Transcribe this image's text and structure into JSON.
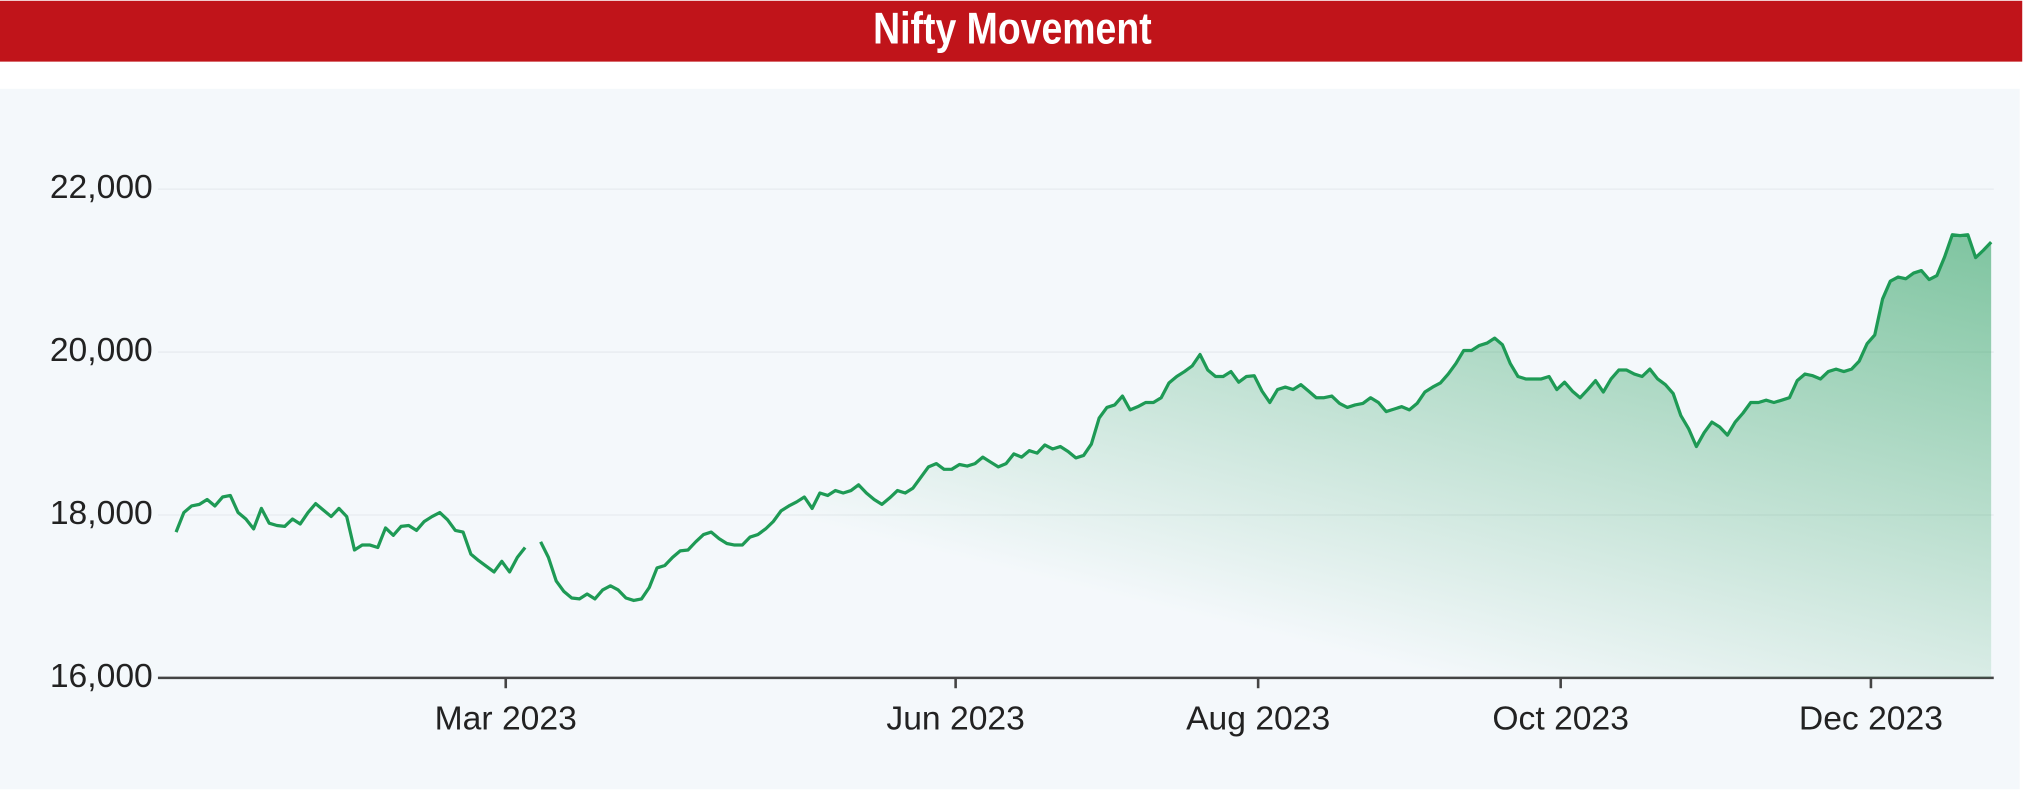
{
  "chart_data": {
    "type": "line",
    "title": "Nifty Movement",
    "x": [
      "2022-12",
      "2022-12",
      "2022-12",
      "2022-12",
      "2022-12",
      "2022-12",
      "2022-12",
      "2022-12",
      "2023-01",
      "2023-01",
      "2023-01",
      "2023-01",
      "2023-01",
      "2023-01",
      "2023-01",
      "2023-01",
      "2023-01",
      "2023-01",
      "2023-01",
      "2023-01",
      "2023-01",
      "2023-01",
      "2023-01",
      "2023-01",
      "2023-01",
      "2023-01",
      "2023-02",
      "2023-02",
      "2023-02",
      "2023-02",
      "2023-02",
      "2023-02",
      "2023-02",
      "2023-02",
      "2023-02",
      "2023-02",
      "2023-02",
      "2023-02",
      "2023-02",
      "2023-02",
      "2023-02",
      "2023-02",
      "2023-02",
      "2023-03",
      "2023-03",
      "2023-03",
      "2023-03",
      "2023-03",
      "2023-03",
      "2023-03",
      "2023-03",
      "2023-03",
      "2023-03",
      "2023-03",
      "2023-03",
      "2023-03",
      "2023-03",
      "2023-03",
      "2023-03",
      "2023-03",
      "2023-03",
      "2023-03",
      "2023-04",
      "2023-04",
      "2023-04",
      "2023-04",
      "2023-04",
      "2023-04",
      "2023-04",
      "2023-04",
      "2023-04",
      "2023-04",
      "2023-04",
      "2023-04",
      "2023-04",
      "2023-04",
      "2023-04",
      "2023-04",
      "2023-04",
      "2023-04",
      "2023-04",
      "2023-05",
      "2023-05",
      "2023-05",
      "2023-05",
      "2023-05",
      "2023-05",
      "2023-05",
      "2023-05",
      "2023-05",
      "2023-05",
      "2023-05",
      "2023-05",
      "2023-05",
      "2023-05",
      "2023-05",
      "2023-05",
      "2023-05",
      "2023-05",
      "2023-05",
      "2023-05",
      "2023-06",
      "2023-06",
      "2023-06",
      "2023-06",
      "2023-06",
      "2023-06",
      "2023-06",
      "2023-06",
      "2023-06",
      "2023-06",
      "2023-06",
      "2023-06",
      "2023-06",
      "2023-06",
      "2023-06",
      "2023-06",
      "2023-06",
      "2023-06",
      "2023-06",
      "2023-07",
      "2023-07",
      "2023-07",
      "2023-07",
      "2023-07",
      "2023-07",
      "2023-07",
      "2023-07",
      "2023-07",
      "2023-07",
      "2023-07",
      "2023-07",
      "2023-07",
      "2023-07",
      "2023-07",
      "2023-07",
      "2023-07",
      "2023-07",
      "2023-07",
      "2023-07",
      "2023-08",
      "2023-08",
      "2023-08",
      "2023-08",
      "2023-08",
      "2023-08",
      "2023-08",
      "2023-08",
      "2023-08",
      "2023-08",
      "2023-08",
      "2023-08",
      "2023-08",
      "2023-08",
      "2023-08",
      "2023-08",
      "2023-08",
      "2023-08",
      "2023-08",
      "2023-09",
      "2023-09",
      "2023-09",
      "2023-09",
      "2023-09",
      "2023-09",
      "2023-09",
      "2023-09",
      "2023-09",
      "2023-09",
      "2023-09",
      "2023-09",
      "2023-09",
      "2023-09",
      "2023-09",
      "2023-09",
      "2023-09",
      "2023-09",
      "2023-09",
      "2023-09",
      "2023-10",
      "2023-10",
      "2023-10",
      "2023-10",
      "2023-10",
      "2023-10",
      "2023-10",
      "2023-10",
      "2023-10",
      "2023-10",
      "2023-10",
      "2023-10",
      "2023-10",
      "2023-10",
      "2023-10",
      "2023-10",
      "2023-10",
      "2023-10",
      "2023-10",
      "2023-10",
      "2023-11",
      "2023-11",
      "2023-11",
      "2023-11",
      "2023-11",
      "2023-11",
      "2023-11",
      "2023-11",
      "2023-11",
      "2023-11",
      "2023-11",
      "2023-11",
      "2023-11",
      "2023-11",
      "2023-11",
      "2023-11",
      "2023-11",
      "2023-11",
      "2023-11",
      "2023-11",
      "2023-12",
      "2023-12",
      "2023-12",
      "2023-12",
      "2023-12",
      "2023-12",
      "2023-12",
      "2023-12",
      "2023-12",
      "2023-12",
      "2023-12",
      "2023-12",
      "2023-12",
      "2023-12",
      "2023-12",
      "2023-12"
    ],
    "series": [
      {
        "color": "#1e9a55",
        "values": [
          17790,
          18030,
          18110,
          18130,
          18190,
          18110,
          18220,
          18240,
          18030,
          17950,
          17830,
          18080,
          17900,
          17870,
          17860,
          17950,
          17890,
          18030,
          18140,
          18060,
          17980,
          18080,
          17980,
          17570,
          17630,
          17630,
          17600,
          17840,
          17750,
          17860,
          17870,
          17810,
          17920,
          17980,
          18030,
          17940,
          17810,
          17790,
          17520,
          17440,
          17370,
          17300,
          17430,
          17300,
          17480,
          17600,
          null,
          17670,
          17480,
          17190,
          17060,
          16980,
          16970,
          17030,
          16970,
          17080,
          17130,
          17080,
          16980,
          16950,
          16970,
          17110,
          17350,
          17380,
          17480,
          17560,
          17570,
          17670,
          17760,
          17790,
          17710,
          17650,
          17630,
          17630,
          17730,
          17760,
          17830,
          17920,
          18050,
          18110,
          18160,
          18220,
          18080,
          18270,
          18240,
          18300,
          18270,
          18300,
          18370,
          18270,
          18190,
          18130,
          18210,
          18300,
          18270,
          18330,
          18460,
          18590,
          18630,
          18560,
          18560,
          18620,
          18600,
          18630,
          18710,
          18650,
          18590,
          18630,
          18750,
          18710,
          18790,
          18760,
          18860,
          18810,
          18840,
          18780,
          18700,
          18730,
          18870,
          19190,
          19320,
          19350,
          19460,
          19290,
          19330,
          19380,
          19380,
          19440,
          19620,
          19700,
          19760,
          19830,
          19970,
          19780,
          19700,
          19700,
          19760,
          19630,
          19700,
          19710,
          19520,
          19380,
          19540,
          19570,
          19540,
          19600,
          19520,
          19440,
          19440,
          19460,
          19370,
          19320,
          19350,
          19370,
          19440,
          19380,
          19270,
          19300,
          19330,
          19290,
          19370,
          19510,
          19570,
          19620,
          19730,
          19860,
          20020,
          20020,
          20080,
          20110,
          20170,
          20090,
          19860,
          19700,
          19670,
          19670,
          19670,
          19700,
          19540,
          19630,
          19520,
          19440,
          19540,
          19650,
          19510,
          19670,
          19780,
          19780,
          19730,
          19700,
          19790,
          19670,
          19600,
          19490,
          19220,
          19060,
          18840,
          19010,
          19140,
          19080,
          18980,
          19140,
          19250,
          19380,
          19380,
          19410,
          19380,
          19410,
          19440,
          19650,
          19730,
          19710,
          19670,
          19760,
          19790,
          19760,
          19790,
          19890,
          20100,
          20210,
          20650,
          20870,
          20920,
          20900,
          20970,
          21000,
          20890,
          20940,
          21170,
          21440,
          21430,
          21440,
          21160,
          21250,
          21350
        ]
      }
    ],
    "xticks": [
      {
        "value": "2023-03",
        "label": "Mar 2023"
      },
      {
        "value": "2023-06",
        "label": "Jun 2023"
      },
      {
        "value": "2023-08",
        "label": "Aug 2023"
      },
      {
        "value": "2023-10",
        "label": "Oct 2023"
      },
      {
        "value": "2023-12",
        "label": "Dec 2023"
      }
    ],
    "ylim": [
      16000,
      23200
    ],
    "yticks": [
      {
        "value": 16000,
        "label": "16,000"
      },
      {
        "value": 18000,
        "label": "18,000"
      },
      {
        "value": 20000,
        "label": "20,000"
      },
      {
        "value": 22000,
        "label": "22,000"
      }
    ],
    "grid": true
  }
}
